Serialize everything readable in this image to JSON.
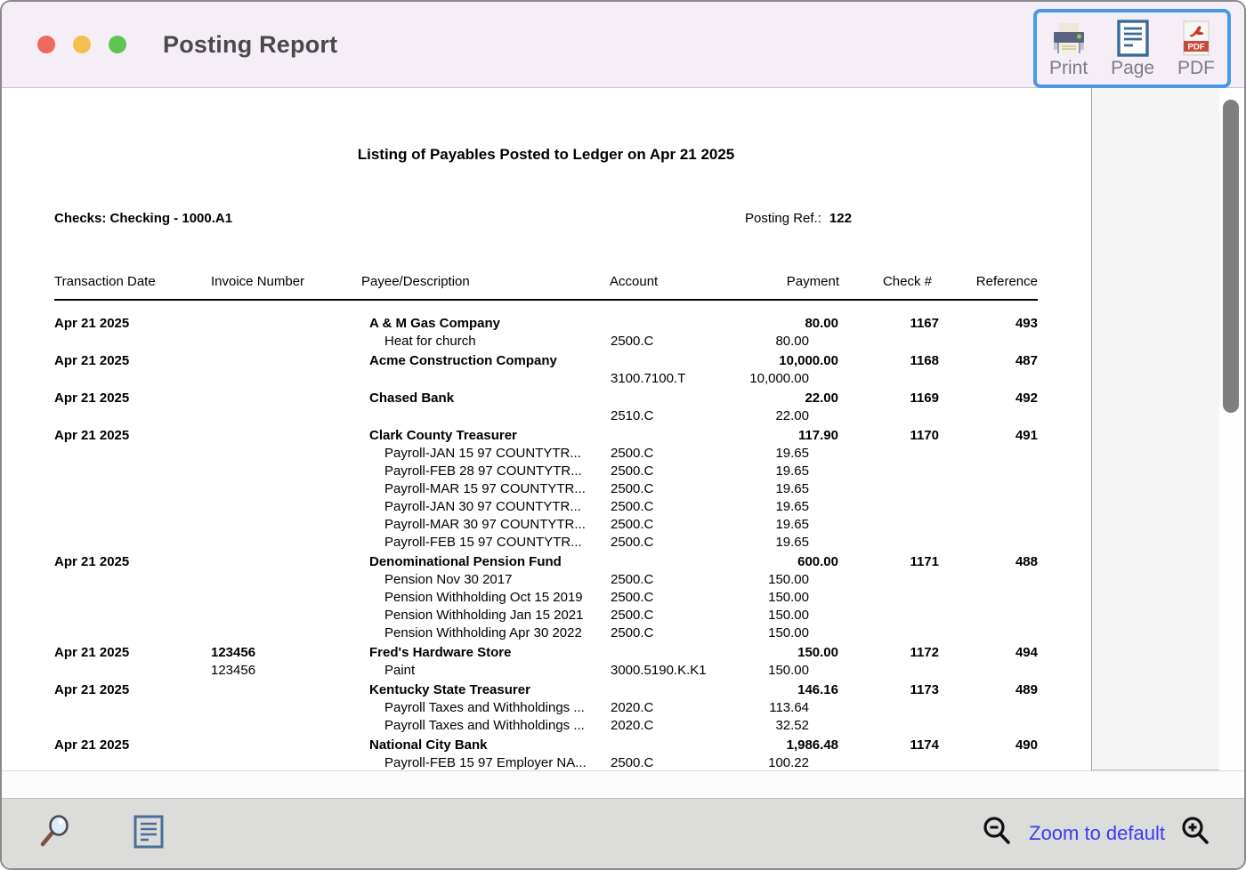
{
  "window": {
    "title": "Posting Report"
  },
  "titlebar_buttons": {
    "close": "close",
    "minimize": "minimize",
    "zoom": "zoom"
  },
  "toolbar": {
    "accent_border_color": "#4a97e8",
    "print_label": "Print",
    "page_label": "Page",
    "pdf_label": "PDF",
    "pdf_badge": "PDF"
  },
  "report": {
    "title": "Listing of Payables Posted to Ledger on Apr 21 2025",
    "account_line": "Checks: Checking - 1000.A1",
    "posting_ref_label": "Posting Ref.:",
    "posting_ref_value": "122",
    "columns": [
      "Transaction Date",
      "Invoice Number",
      "Payee/Description",
      "Account",
      "Payment",
      "Check #",
      "Reference"
    ],
    "entries": [
      {
        "date": "Apr 21 2025",
        "invoice": "",
        "payee": "A & M Gas Company",
        "payment": "80.00",
        "check": "1167",
        "reference": "493",
        "details": [
          {
            "invoice": "",
            "desc": "Heat for church",
            "account": "2500.C",
            "amount": "80.00"
          }
        ]
      },
      {
        "date": "Apr 21 2025",
        "invoice": "",
        "payee": "Acme Construction Company",
        "payment": "10,000.00",
        "check": "1168",
        "reference": "487",
        "details": [
          {
            "invoice": "",
            "desc": "",
            "account": "3100.7100.T",
            "amount": "10,000.00"
          }
        ]
      },
      {
        "date": "Apr 21 2025",
        "invoice": "",
        "payee": "Chased Bank",
        "payment": "22.00",
        "check": "1169",
        "reference": "492",
        "details": [
          {
            "invoice": "",
            "desc": "",
            "account": "2510.C",
            "amount": "22.00"
          }
        ]
      },
      {
        "date": "Apr 21 2025",
        "invoice": "",
        "payee": "Clark County Treasurer",
        "payment": "117.90",
        "check": "1170",
        "reference": "491",
        "details": [
          {
            "invoice": "",
            "desc": "Payroll-JAN 15 97 COUNTYTR...",
            "account": "2500.C",
            "amount": "19.65"
          },
          {
            "invoice": "",
            "desc": "Payroll-FEB 28 97 COUNTYTR...",
            "account": "2500.C",
            "amount": "19.65"
          },
          {
            "invoice": "",
            "desc": "Payroll-MAR 15 97 COUNTYTR...",
            "account": "2500.C",
            "amount": "19.65"
          },
          {
            "invoice": "",
            "desc": "Payroll-JAN 30 97 COUNTYTR...",
            "account": "2500.C",
            "amount": "19.65"
          },
          {
            "invoice": "",
            "desc": "Payroll-MAR 30 97 COUNTYTR...",
            "account": "2500.C",
            "amount": "19.65"
          },
          {
            "invoice": "",
            "desc": "Payroll-FEB 15 97 COUNTYTR...",
            "account": "2500.C",
            "amount": "19.65"
          }
        ]
      },
      {
        "date": "Apr 21 2025",
        "invoice": "",
        "payee": "Denominational Pension Fund",
        "payment": "600.00",
        "check": "1171",
        "reference": "488",
        "details": [
          {
            "invoice": "",
            "desc": "Pension Nov 30 2017",
            "account": "2500.C",
            "amount": "150.00"
          },
          {
            "invoice": "",
            "desc": "Pension Withholding Oct 15 2019",
            "account": "2500.C",
            "amount": "150.00"
          },
          {
            "invoice": "",
            "desc": "Pension Withholding Jan 15 2021",
            "account": "2500.C",
            "amount": "150.00"
          },
          {
            "invoice": "",
            "desc": "Pension Withholding Apr 30 2022",
            "account": "2500.C",
            "amount": "150.00"
          }
        ]
      },
      {
        "date": "Apr 21 2025",
        "invoice": "123456",
        "payee": "Fred's Hardware Store",
        "payment": "150.00",
        "check": "1172",
        "reference": "494",
        "details": [
          {
            "invoice": "123456",
            "desc": "Paint",
            "account": "3000.5190.K.K1",
            "amount": "150.00"
          }
        ]
      },
      {
        "date": "Apr 21 2025",
        "invoice": "",
        "payee": "Kentucky State Treasurer",
        "payment": "146.16",
        "check": "1173",
        "reference": "489",
        "details": [
          {
            "invoice": "",
            "desc": "Payroll Taxes and Withholdings ...",
            "account": "2020.C",
            "amount": "113.64"
          },
          {
            "invoice": "",
            "desc": "Payroll Taxes and Withholdings ...",
            "account": "2020.C",
            "amount": "32.52"
          }
        ]
      },
      {
        "date": "Apr 21 2025",
        "invoice": "",
        "payee": "National City Bank",
        "payment": "1,986.48",
        "check": "1174",
        "reference": "490",
        "details": [
          {
            "invoice": "",
            "desc": "Payroll-FEB 15 97 Employer NA...",
            "account": "2500.C",
            "amount": "100.22"
          }
        ]
      }
    ]
  },
  "statusbar": {
    "zoom_label": "Zoom to default",
    "zoom_label_color": "#3b3bf2"
  },
  "colors": {
    "titlebar_bg": "#f5eef6",
    "traffic_red": "#ed6a5e",
    "traffic_yellow": "#f4bf4f",
    "traffic_green": "#5fc454",
    "toolbar_accent": "#4a97e8",
    "scrollbar_thumb": "#7f7f7f"
  }
}
